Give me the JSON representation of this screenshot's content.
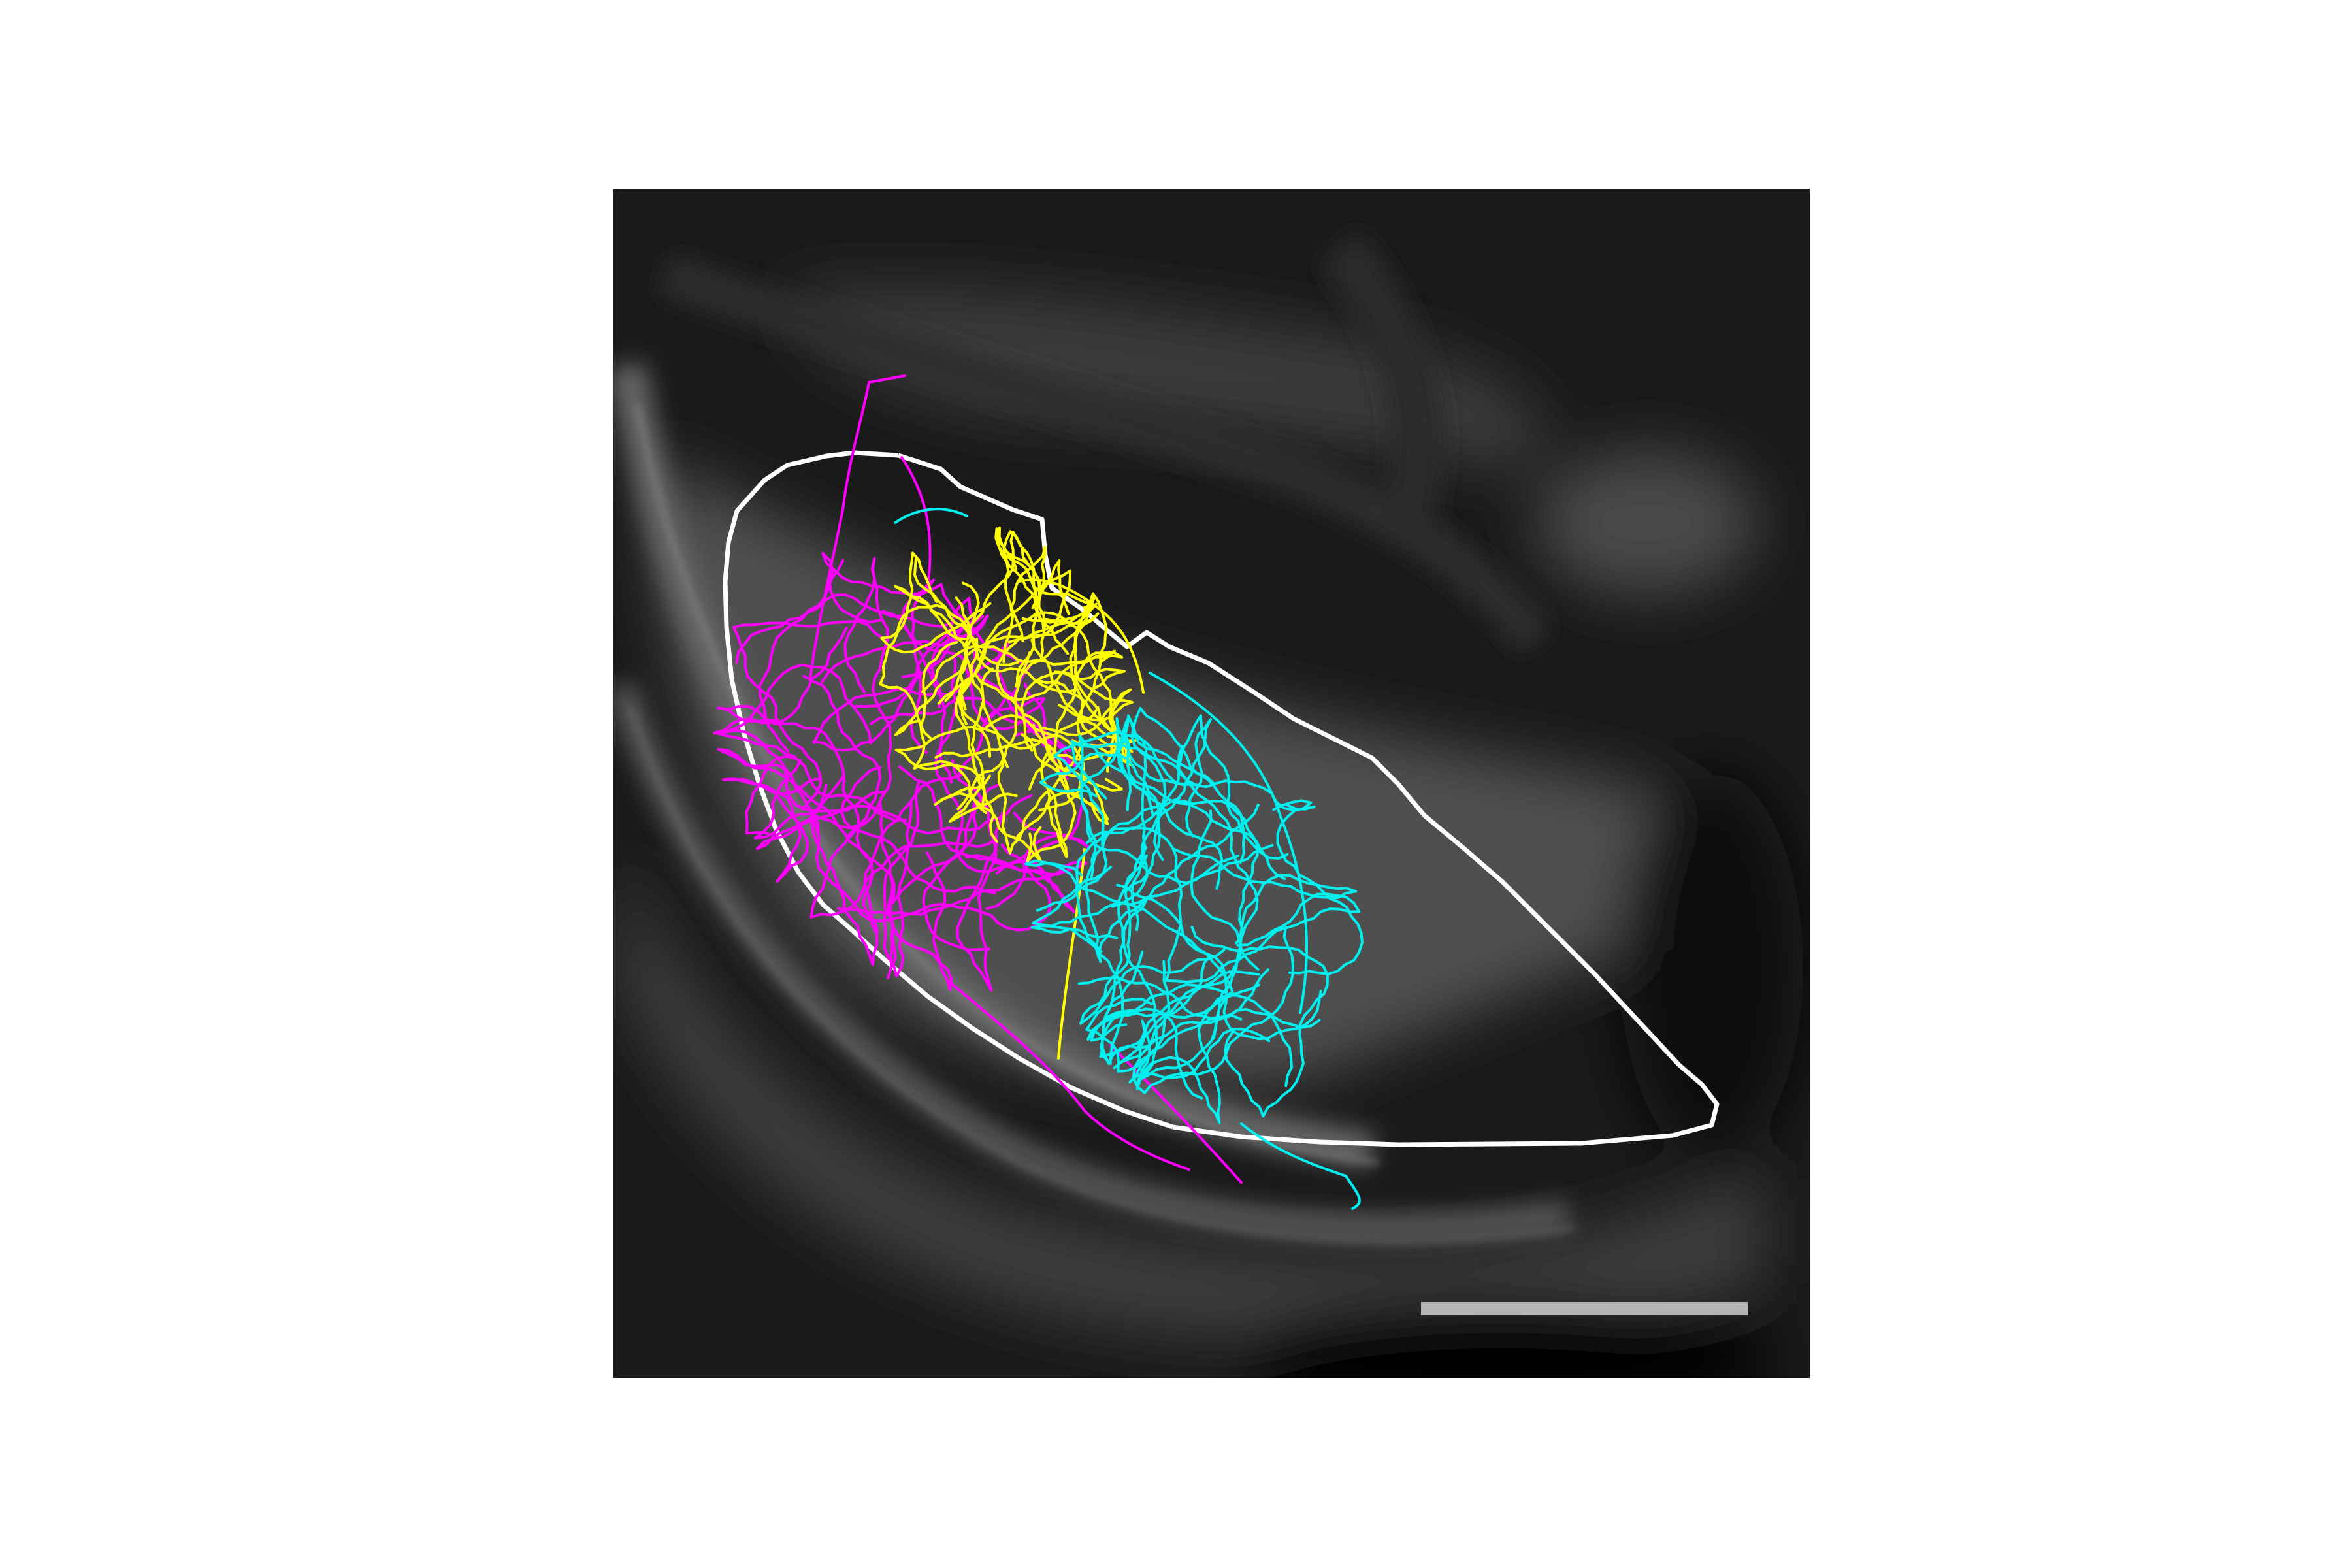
{
  "figure": {
    "background": "#ffffff",
    "image_tone": "grayscale",
    "outline_color": "#ffffff",
    "scale_bar_color": "#b4b4b4"
  },
  "traces": [
    {
      "name": "magenta",
      "color": "#ff00ff"
    },
    {
      "name": "yellow",
      "color": "#ffff00"
    },
    {
      "name": "cyan",
      "color": "#00f0f0"
    }
  ]
}
